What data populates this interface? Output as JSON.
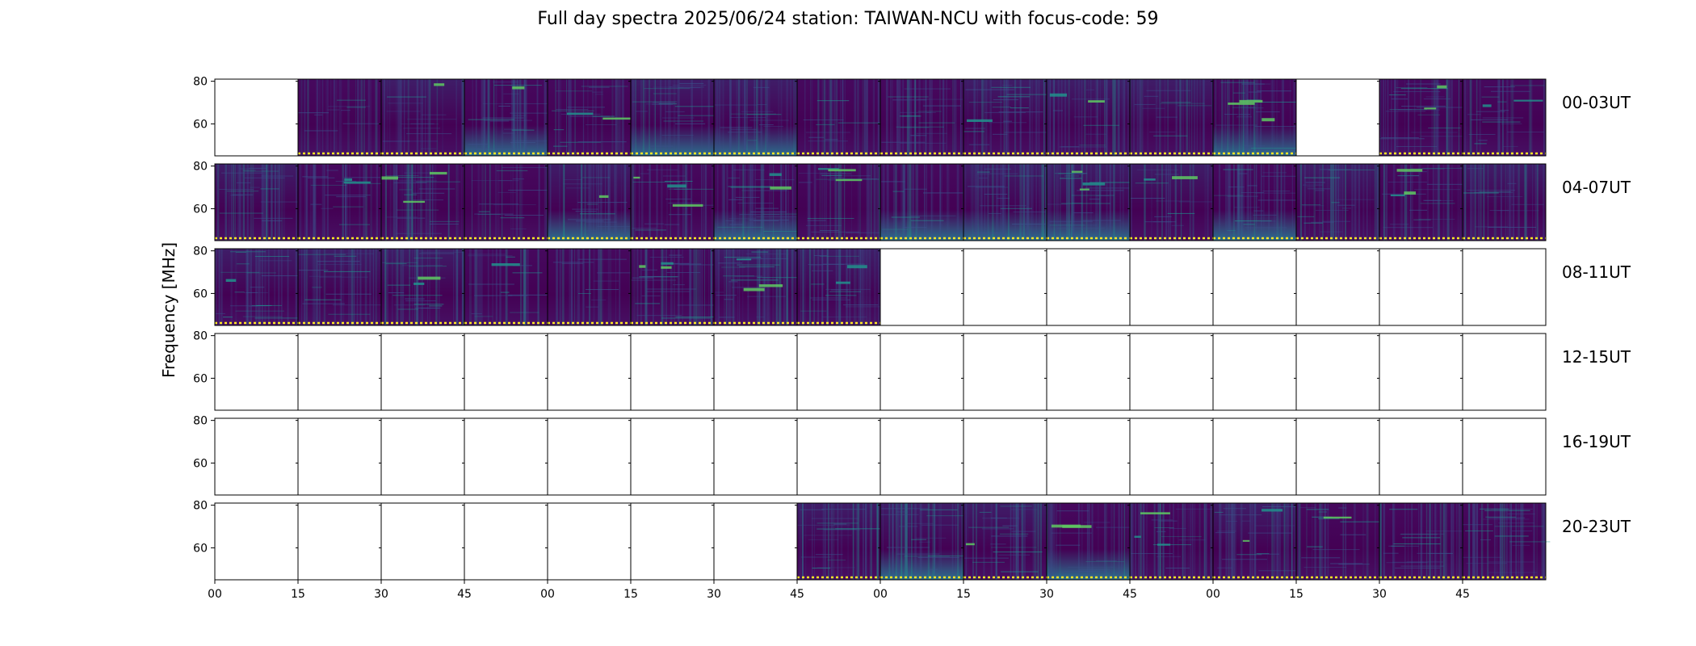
{
  "chart_data": {
    "type": "heatmap",
    "title": "Full day spectra 2025/06/24 station: TAIWAN-NCU with focus-code: 59",
    "ylabel": "Frequency [MHz]",
    "xlabel": "",
    "ylim": [
      45,
      81
    ],
    "y_ticks": [
      60,
      80
    ],
    "x_tick_labels": [
      "00",
      "15",
      "30",
      "45",
      "00",
      "15",
      "30",
      "45",
      "00",
      "15",
      "30",
      "45",
      "00",
      "15",
      "30",
      "45"
    ],
    "colormap": [
      "#440154",
      "#3b528b",
      "#21918c",
      "#5ec962",
      "#fde725"
    ],
    "grid": false,
    "rows": [
      {
        "label": "00-03UT",
        "panels_with_data": [
          false,
          true,
          true,
          true,
          true,
          true,
          true,
          true,
          true,
          true,
          true,
          true,
          true,
          false,
          true,
          true
        ]
      },
      {
        "label": "04-07UT",
        "panels_with_data": [
          true,
          true,
          true,
          true,
          true,
          true,
          true,
          true,
          true,
          true,
          true,
          true,
          true,
          true,
          true,
          true
        ]
      },
      {
        "label": "08-11UT",
        "panels_with_data": [
          true,
          true,
          true,
          true,
          true,
          true,
          true,
          true,
          false,
          false,
          false,
          false,
          false,
          false,
          false,
          false
        ]
      },
      {
        "label": "12-15UT",
        "panels_with_data": [
          false,
          false,
          false,
          false,
          false,
          false,
          false,
          false,
          false,
          false,
          false,
          false,
          false,
          false,
          false,
          false
        ]
      },
      {
        "label": "16-19UT",
        "panels_with_data": [
          false,
          false,
          false,
          false,
          false,
          false,
          false,
          false,
          false,
          false,
          false,
          false,
          false,
          false,
          false,
          false
        ]
      },
      {
        "label": "20-23UT",
        "panels_with_data": [
          false,
          false,
          false,
          false,
          false,
          false,
          false,
          true,
          true,
          true,
          true,
          true,
          true,
          true,
          true,
          true
        ]
      }
    ]
  }
}
